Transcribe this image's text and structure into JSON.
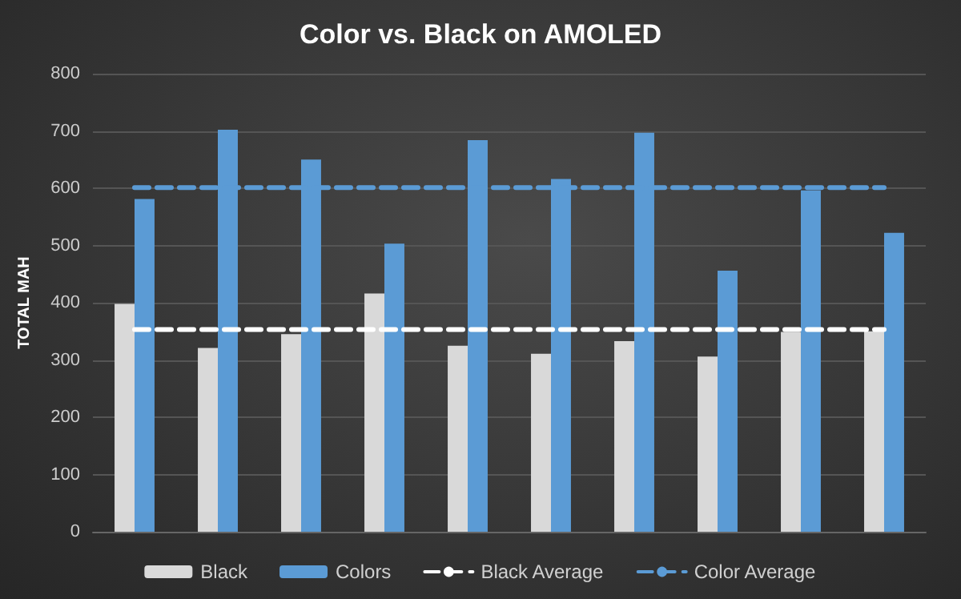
{
  "chart_data": {
    "type": "bar",
    "title": "Color vs. Black on AMOLED",
    "ylabel": "TOTAL MAH",
    "categories": [
      null,
      null,
      null,
      null,
      null,
      null,
      null,
      null,
      null,
      null
    ],
    "series": [
      {
        "name": "Black",
        "color": "#d9d9d9",
        "values": [
          398,
          321,
          345,
          416,
          325,
          311,
          333,
          306,
          349,
          350
        ]
      },
      {
        "name": "Colors",
        "color": "#5b9bd5",
        "values": [
          581,
          702,
          650,
          503,
          684,
          616,
          697,
          456,
          596,
          522
        ]
      },
      {
        "name": "Black Average",
        "type": "line",
        "line_style": "dashed",
        "marker": "none",
        "color": "#ffffff",
        "values": [
          353,
          353,
          353,
          353,
          353,
          353,
          353,
          353,
          353,
          353
        ]
      },
      {
        "name": "Color Average",
        "type": "line",
        "line_style": "dashed",
        "marker": "none",
        "color": "#5b9bd5",
        "values": [
          601,
          601,
          601,
          601,
          601,
          601,
          601,
          601,
          601,
          601
        ]
      }
    ],
    "ylim": [
      0,
      800
    ],
    "yticks": [
      0,
      100,
      200,
      300,
      400,
      500,
      600,
      700,
      800
    ],
    "grid": "y",
    "legend": "bottom"
  }
}
